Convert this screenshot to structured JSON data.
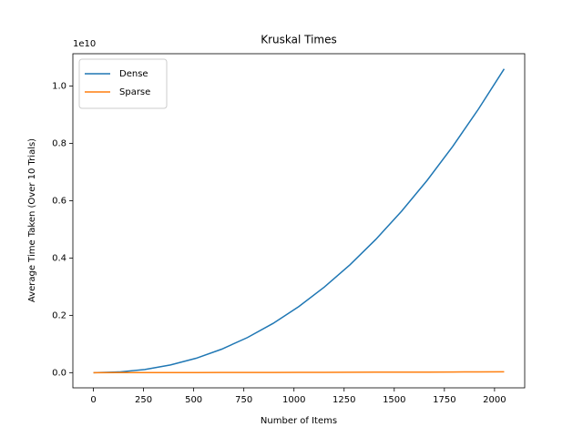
{
  "chart_data": {
    "type": "line",
    "title": "Kruskal Times",
    "x_label": "Number of Items",
    "y_label": "Average Time Taken (Over 10 Trials)",
    "y_offset_label": "1e10",
    "x": [
      0,
      128,
      256,
      384,
      512,
      640,
      768,
      896,
      1024,
      1152,
      1280,
      1408,
      1536,
      1664,
      1792,
      1920,
      2048
    ],
    "series": [
      {
        "name": "Dense",
        "color": "#1f77b4",
        "values": [
          0,
          0.0024,
          0.0109,
          0.0267,
          0.0502,
          0.082,
          0.1225,
          0.1719,
          0.2307,
          0.299,
          0.377,
          0.465,
          0.563,
          0.671,
          0.79,
          0.92,
          1.06
        ]
      },
      {
        "name": "Sparse",
        "color": "#ff7f0e",
        "values": [
          0,
          0.0001,
          0.0002,
          0.0003,
          0.0004,
          0.0005,
          0.0007,
          0.0008,
          0.001,
          0.0012,
          0.0014,
          0.0016,
          0.0018,
          0.002,
          0.0023,
          0.0026,
          0.003
        ]
      }
    ],
    "xlim": [
      -102.4,
      2150.4
    ],
    "xticks": [
      0,
      250,
      500,
      750,
      1000,
      1250,
      1500,
      1750,
      2000
    ],
    "ylim": [
      -0.053,
      1.113
    ],
    "yticks": [
      {
        "value": 0,
        "label": "0.0"
      },
      0.2,
      0.4,
      0.6,
      0.8,
      {
        "value": 1,
        "label": "1.0"
      }
    ],
    "grid": false,
    "legend": "upper left"
  }
}
